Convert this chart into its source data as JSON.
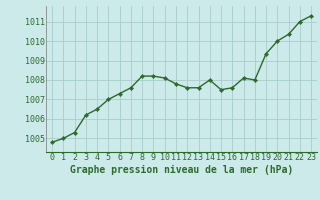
{
  "x": [
    0,
    1,
    2,
    3,
    4,
    5,
    6,
    7,
    8,
    9,
    10,
    11,
    12,
    13,
    14,
    15,
    16,
    17,
    18,
    19,
    20,
    21,
    22,
    23
  ],
  "y": [
    1004.8,
    1005.0,
    1005.3,
    1006.2,
    1006.5,
    1007.0,
    1007.3,
    1007.6,
    1008.2,
    1008.2,
    1008.1,
    1007.8,
    1007.6,
    1007.6,
    1008.0,
    1007.5,
    1007.6,
    1008.1,
    1008.0,
    1009.35,
    1010.0,
    1010.35,
    1011.0,
    1011.3
  ],
  "line_color": "#2d6a2d",
  "marker": "D",
  "marker_size": 2.2,
  "bg_color": "#cceaea",
  "grid_color": "#aacccc",
  "xlabel": "Graphe pression niveau de la mer (hPa)",
  "xlabel_color": "#2d6a2d",
  "xlabel_fontsize": 7.0,
  "ylabel_ticks": [
    1005,
    1006,
    1007,
    1008,
    1009,
    1010,
    1011
  ],
  "ylim": [
    1004.3,
    1011.8
  ],
  "xlim": [
    -0.5,
    23.5
  ],
  "tick_color": "#2d6a2d",
  "tick_fontsize": 6.0,
  "linewidth": 1.0
}
